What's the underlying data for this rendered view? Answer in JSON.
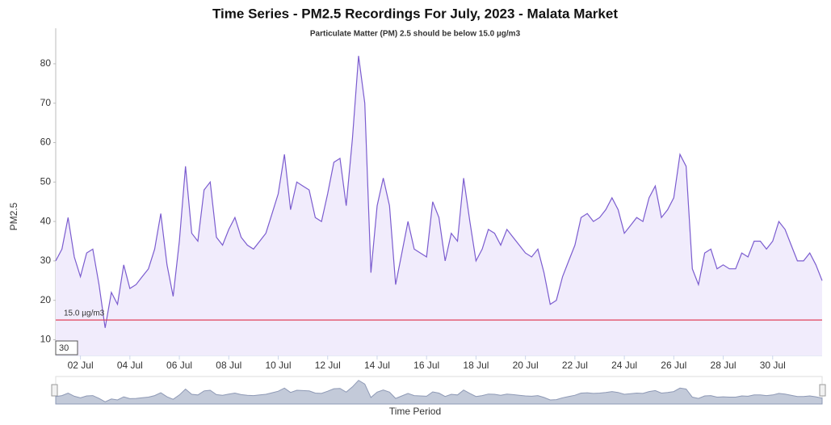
{
  "chart_data": {
    "type": "area",
    "title": "Time Series - PM2.5 Recordings For July, 2023 - Malata Market",
    "subtitle": "Particulate Matter (PM) 2.5 should be below 15.0 µg/m3",
    "y_label": "PM2.5",
    "x_label": "Time Period",
    "range_input": "30",
    "color": "#7b5ccf",
    "fill": "#f1ecfc",
    "threshold": {
      "value": 15,
      "label": "15.0 µg/m3",
      "color": "#e0304a"
    },
    "xlim": [
      1,
      32
    ],
    "xticks": [
      {
        "value": 2,
        "label": "02 Jul"
      },
      {
        "value": 4,
        "label": "04 Jul"
      },
      {
        "value": 6,
        "label": "06 Jul"
      },
      {
        "value": 8,
        "label": "08 Jul"
      },
      {
        "value": 10,
        "label": "10 Jul"
      },
      {
        "value": 12,
        "label": "12 Jul"
      },
      {
        "value": 14,
        "label": "14 Jul"
      },
      {
        "value": 16,
        "label": "16 Jul"
      },
      {
        "value": 18,
        "label": "18 Jul"
      },
      {
        "value": 20,
        "label": "20 Jul"
      },
      {
        "value": 22,
        "label": "22 Jul"
      },
      {
        "value": 24,
        "label": "24 Jul"
      },
      {
        "value": 26,
        "label": "26 Jul"
      },
      {
        "value": 28,
        "label": "28 Jul"
      },
      {
        "value": 30,
        "label": "30 Jul"
      }
    ],
    "ylim": [
      6,
      89
    ],
    "yticks": [
      10,
      20,
      30,
      40,
      50,
      60,
      70,
      80
    ],
    "grid": false,
    "x": [
      1,
      1.25,
      1.5,
      1.75,
      2,
      2.25,
      2.5,
      2.75,
      3,
      3.25,
      3.5,
      3.75,
      4,
      4.25,
      4.5,
      4.75,
      5,
      5.25,
      5.5,
      5.75,
      6,
      6.25,
      6.5,
      6.75,
      7,
      7.25,
      7.5,
      7.75,
      8,
      8.25,
      8.5,
      8.75,
      9,
      9.25,
      9.5,
      9.75,
      10,
      10.25,
      10.5,
      10.75,
      11,
      11.25,
      11.5,
      11.75,
      12,
      12.25,
      12.5,
      12.75,
      13,
      13.25,
      13.5,
      13.75,
      14,
      14.25,
      14.5,
      14.75,
      15,
      15.25,
      15.5,
      15.75,
      16,
      16.25,
      16.5,
      16.75,
      17,
      17.25,
      17.5,
      17.75,
      18,
      18.25,
      18.5,
      18.75,
      19,
      19.25,
      19.5,
      19.75,
      20,
      20.25,
      20.5,
      20.75,
      21,
      21.25,
      21.5,
      21.75,
      22,
      22.25,
      22.5,
      22.75,
      23,
      23.25,
      23.5,
      23.75,
      24,
      24.25,
      24.5,
      24.75,
      25,
      25.25,
      25.5,
      25.75,
      26,
      26.25,
      26.5,
      26.75,
      27,
      27.25,
      27.5,
      27.75,
      28,
      28.25,
      28.5,
      28.75,
      29,
      29.25,
      29.5,
      29.75,
      30,
      30.25,
      30.5,
      30.75,
      31,
      31.25,
      31.5,
      31.75,
      32
    ],
    "values": [
      30,
      33,
      41,
      31,
      26,
      32,
      33,
      24,
      13,
      22,
      19,
      29,
      23,
      24,
      26,
      28,
      33,
      42,
      29,
      21,
      35,
      54,
      37,
      35,
      48,
      50,
      36,
      34,
      38,
      41,
      36,
      34,
      33,
      35,
      37,
      42,
      47,
      57,
      43,
      50,
      49,
      48,
      41,
      40,
      47,
      55,
      56,
      44,
      61,
      82,
      70,
      27,
      44,
      51,
      44,
      24,
      32,
      40,
      33,
      32,
      31,
      45,
      41,
      30,
      37,
      35,
      51,
      40,
      30,
      33,
      38,
      37,
      34,
      38,
      36,
      34,
      32,
      31,
      33,
      27,
      19,
      20,
      26,
      30,
      34,
      41,
      42,
      40,
      41,
      43,
      46,
      43,
      37,
      39,
      41,
      40,
      46,
      49,
      41,
      43,
      46,
      57,
      54,
      28,
      24,
      32,
      33,
      28,
      29,
      28,
      28,
      32,
      31,
      35,
      35,
      33,
      35,
      40,
      38,
      34,
      30,
      30,
      32,
      29,
      25
    ]
  }
}
